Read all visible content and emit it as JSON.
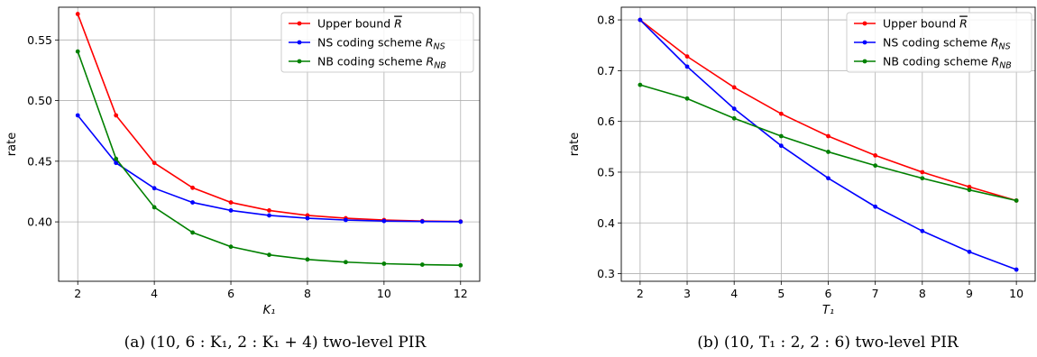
{
  "chart_data": [
    {
      "type": "line",
      "caption": "(a) (10, 6 : K₁, 2 : K₁ + 4) two-level PIR",
      "xlabel": "K₁",
      "ylabel": "rate",
      "xlim": [
        1.5,
        12.5
      ],
      "ylim": [
        0.351,
        0.577
      ],
      "xticks": [
        2,
        4,
        6,
        8,
        10,
        12
      ],
      "yticks": [
        0.4,
        0.45,
        0.5,
        0.55
      ],
      "ytick_labels": [
        "0.40",
        "0.45",
        "0.50",
        "0.55"
      ],
      "grid": true,
      "legend_position": "upper right",
      "x": [
        2,
        3,
        4,
        5,
        6,
        7,
        8,
        9,
        10,
        11,
        12
      ],
      "series": [
        {
          "name": "Upper bound R",
          "legend_base": "Upper bound ",
          "legend_math": "R",
          "legend_sub": "",
          "overline": true,
          "color": "#ff0000",
          "values": [
            0.5714,
            0.4878,
            0.4486,
            0.4281,
            0.416,
            0.4094,
            0.4053,
            0.403,
            0.4015,
            0.4007,
            0.4003
          ]
        },
        {
          "name": "NS coding scheme R_NS",
          "legend_base": "NS coding scheme ",
          "legend_math": "R",
          "legend_sub": "NS",
          "overline": false,
          "color": "#0000ff",
          "values": [
            0.4878,
            0.4486,
            0.4277,
            0.416,
            0.4094,
            0.4053,
            0.403,
            0.4015,
            0.4007,
            0.4003,
            0.4001
          ]
        },
        {
          "name": "NB coding scheme R_NB",
          "legend_base": "NB coding scheme ",
          "legend_math": "R",
          "legend_sub": "NB",
          "overline": false,
          "color": "#008000",
          "values": [
            0.5405,
            0.452,
            0.412,
            0.3912,
            0.3795,
            0.3728,
            0.369,
            0.3668,
            0.3655,
            0.3647,
            0.3642
          ]
        }
      ]
    },
    {
      "type": "line",
      "caption": "(b) (10, T₁ : 2, 2 : 6) two-level PIR",
      "xlabel": "T₁",
      "ylabel": "rate",
      "xlim": [
        1.6,
        10.4
      ],
      "ylim": [
        0.285,
        0.825
      ],
      "xticks": [
        2,
        3,
        4,
        5,
        6,
        7,
        8,
        9,
        10
      ],
      "yticks": [
        0.3,
        0.4,
        0.5,
        0.6,
        0.7,
        0.8
      ],
      "ytick_labels": [
        "0.3",
        "0.4",
        "0.5",
        "0.6",
        "0.7",
        "0.8"
      ],
      "grid": true,
      "legend_position": "upper right",
      "x": [
        2,
        3,
        4,
        5,
        6,
        7,
        8,
        9,
        10
      ],
      "series": [
        {
          "name": "Upper bound R",
          "legend_base": "Upper bound ",
          "legend_math": "R",
          "legend_sub": "",
          "overline": true,
          "color": "#ff0000",
          "values": [
            0.8,
            0.728,
            0.667,
            0.615,
            0.571,
            0.533,
            0.5,
            0.471,
            0.444
          ]
        },
        {
          "name": "NS coding scheme R_NS",
          "legend_base": "NS coding scheme ",
          "legend_math": "R",
          "legend_sub": "NS",
          "overline": false,
          "color": "#0000ff",
          "values": [
            0.8,
            0.708,
            0.625,
            0.552,
            0.488,
            0.432,
            0.384,
            0.343,
            0.308
          ]
        },
        {
          "name": "NB coding scheme R_NB",
          "legend_base": "NB coding scheme ",
          "legend_math": "R",
          "legend_sub": "NB",
          "overline": false,
          "color": "#008000",
          "values": [
            0.672,
            0.645,
            0.606,
            0.571,
            0.54,
            0.513,
            0.488,
            0.465,
            0.444
          ]
        }
      ]
    }
  ]
}
